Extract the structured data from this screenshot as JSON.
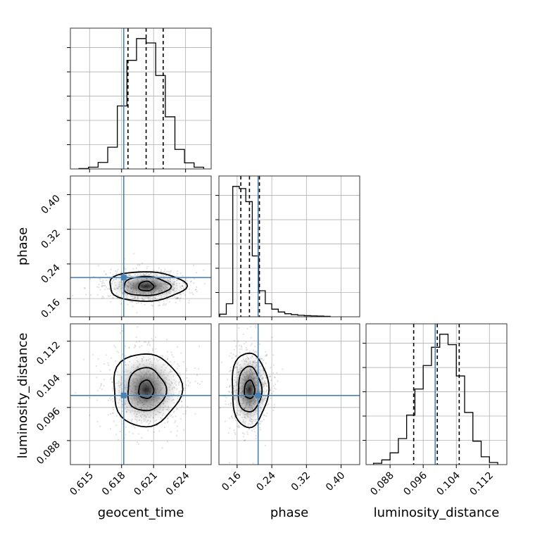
{
  "chart_data": {
    "type": "corner",
    "parameters": [
      "geocent_time",
      "phase",
      "luminosity_distance"
    ],
    "axis_labels": {
      "geocent_time": "geocent_time",
      "phase": "phase",
      "luminosity_distance": "luminosity_distance"
    },
    "ranges": {
      "geocent_time": [
        0.6132,
        0.6264
      ],
      "phase": [
        0.118,
        0.443
      ],
      "luminosity_distance": [
        0.0822,
        0.1162
      ]
    },
    "ticks": {
      "geocent_time": [
        0.615,
        0.618,
        0.621,
        0.624
      ],
      "phase": [
        0.16,
        0.24,
        0.32,
        0.4
      ],
      "luminosity_distance": [
        0.088,
        0.096,
        0.104,
        0.112
      ]
    },
    "tick_labels": {
      "geocent_time": [
        "0.615",
        "0.618",
        "0.621",
        "0.624"
      ],
      "phase": [
        "0.16",
        "0.24",
        "0.32",
        "0.40"
      ],
      "luminosity_distance": [
        "0.088",
        "0.096",
        "0.104",
        "0.112"
      ]
    },
    "truths": {
      "geocent_time": 0.6182,
      "phase": 0.2085,
      "luminosity_distance": 0.0989
    },
    "truth_color": "#4682b4",
    "quantiles": {
      "geocent_time": [
        0.6186,
        0.6203,
        0.6219
      ],
      "phase": [
        0.1685,
        0.1885,
        0.2115
      ],
      "luminosity_distance": [
        0.0937,
        0.0994,
        0.1047
      ]
    },
    "marginals": {
      "geocent_time": {
        "edges": [
          0.614,
          0.6149,
          0.6158,
          0.6167,
          0.6176,
          0.6185,
          0.6194,
          0.6203,
          0.6212,
          0.6221,
          0.623,
          0.6239,
          0.6248,
          0.6257
        ],
        "counts": [
          2,
          8,
          30,
          100,
          290,
          500,
          600,
          580,
          430,
          240,
          90,
          28,
          8
        ]
      },
      "phase": {
        "edges": [
          0.12,
          0.135,
          0.15,
          0.165,
          0.18,
          0.195,
          0.21,
          0.225,
          0.24,
          0.255,
          0.27,
          0.285,
          0.3,
          0.315,
          0.33,
          0.345,
          0.36,
          0.375
        ],
        "counts": [
          12,
          60,
          600,
          590,
          530,
          280,
          120,
          60,
          35,
          22,
          14,
          10,
          7,
          5,
          4,
          3,
          2
        ]
      },
      "luminosity_distance": {
        "edges": [
          0.084,
          0.086,
          0.088,
          0.09,
          0.092,
          0.094,
          0.096,
          0.098,
          0.1,
          0.102,
          0.104,
          0.106,
          0.108,
          0.11,
          0.112,
          0.114
        ],
        "counts": [
          5,
          18,
          45,
          100,
          190,
          290,
          380,
          450,
          500,
          460,
          340,
          200,
          90,
          30,
          8
        ]
      }
    },
    "contours": {
      "phase_vs_geocent_time": {
        "center": [
          0.6203,
          0.1885
        ],
        "radii": [
          [
            0.0007,
            0.011
          ],
          [
            0.0022,
            0.022
          ],
          [
            0.0036,
            0.034
          ]
        ]
      },
      "luminosity_distance_vs_geocent_time": {
        "center": [
          0.6203,
          0.1003
        ],
        "radii": [
          [
            0.0007,
            0.0022
          ],
          [
            0.0018,
            0.0052
          ],
          [
            0.0032,
            0.0088
          ]
        ]
      },
      "luminosity_distance_vs_phase": {
        "center": [
          0.1885,
          0.1003
        ],
        "radii": [
          [
            0.012,
            0.0022
          ],
          [
            0.027,
            0.0055
          ],
          [
            0.042,
            0.009
          ]
        ]
      }
    },
    "grid": true
  }
}
